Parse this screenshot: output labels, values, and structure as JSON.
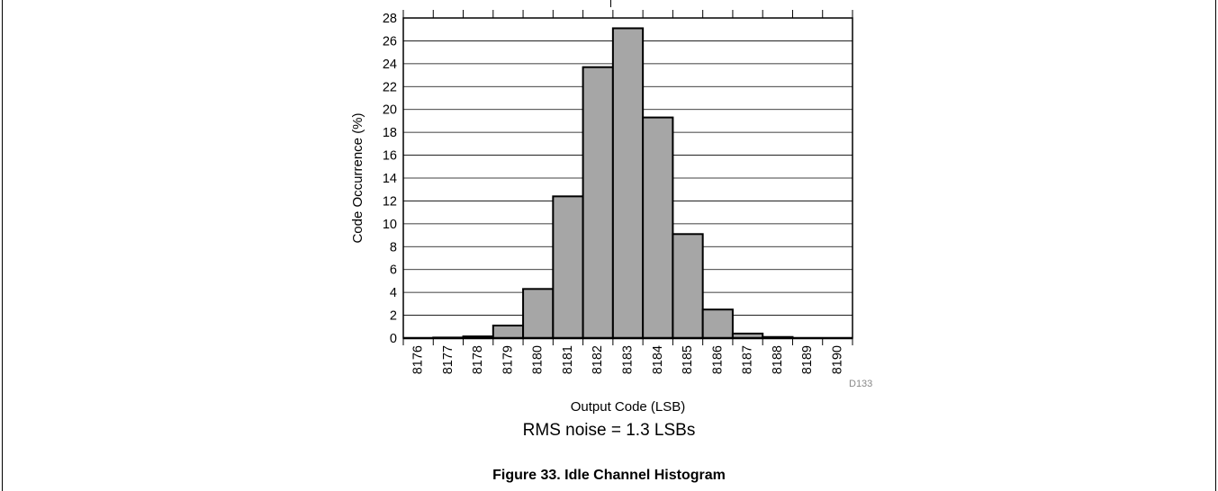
{
  "chart_data": {
    "type": "bar",
    "title": "",
    "xlabel": "Output Code (LSB)",
    "ylabel": "Code Occurrence (%)",
    "categories": [
      "8176",
      "8177",
      "8178",
      "8179",
      "8180",
      "8181",
      "8182",
      "8183",
      "8184",
      "8185",
      "8186",
      "8187",
      "8188",
      "8189",
      "8190"
    ],
    "values": [
      0,
      0.05,
      0.15,
      1.1,
      4.3,
      12.4,
      23.7,
      27.1,
      19.3,
      9.1,
      2.5,
      0.4,
      0.1,
      0,
      0
    ],
    "ylim": [
      0,
      28
    ],
    "yticks": [
      "0",
      "2",
      "4",
      "6",
      "8",
      "10",
      "12",
      "14",
      "16",
      "18",
      "20",
      "22",
      "24",
      "26",
      "28"
    ],
    "grid": true,
    "bar_color": "#a6a6a6",
    "ref_id": "D133"
  },
  "note": "RMS noise = 1.3 LSBs",
  "figure_caption": "Figure 33. Idle Channel Histogram"
}
